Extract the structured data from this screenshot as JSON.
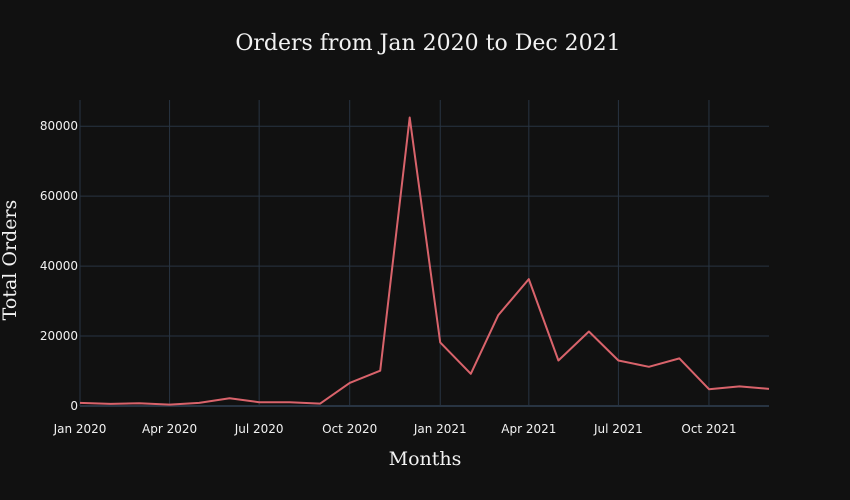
{
  "chart_data": {
    "type": "line",
    "title": "Orders from Jan 2020 to Dec 2021",
    "xlabel": "Months",
    "ylabel": "Total Orders",
    "x": [
      "2020-01",
      "2020-02",
      "2020-03",
      "2020-04",
      "2020-05",
      "2020-06",
      "2020-07",
      "2020-08",
      "2020-09",
      "2020-10",
      "2020-11",
      "2020-12",
      "2021-01",
      "2021-02",
      "2021-03",
      "2021-04",
      "2021-05",
      "2021-06",
      "2021-07",
      "2021-08",
      "2021-09",
      "2021-10",
      "2021-11",
      "2021-12"
    ],
    "values": [
      900,
      600,
      800,
      400,
      900,
      2200,
      1100,
      1100,
      700,
      6600,
      10100,
      82500,
      18200,
      9200,
      26000,
      36300,
      13000,
      21300,
      13000,
      11200,
      13600,
      4800,
      5600,
      4900
    ],
    "ylim": [
      0,
      87500
    ],
    "yticks": [
      0,
      20000,
      40000,
      60000,
      80000
    ],
    "yticklabels": [
      "0",
      "20000",
      "40000",
      "60000",
      "80000"
    ],
    "xticks": [
      "2020-01",
      "2020-04",
      "2020-07",
      "2020-10",
      "2021-01",
      "2021-04",
      "2021-07",
      "2021-10"
    ],
    "xticklabels": [
      "Jan 2020",
      "Apr 2020",
      "Jul 2020",
      "Oct 2020",
      "Jan 2021",
      "Apr 2021",
      "Jul 2021",
      "Oct 2021"
    ],
    "grid": true,
    "colors": {
      "background": "#111111",
      "line": "#d9636b",
      "grid": "#283442",
      "text": "#f2f2f2"
    }
  }
}
